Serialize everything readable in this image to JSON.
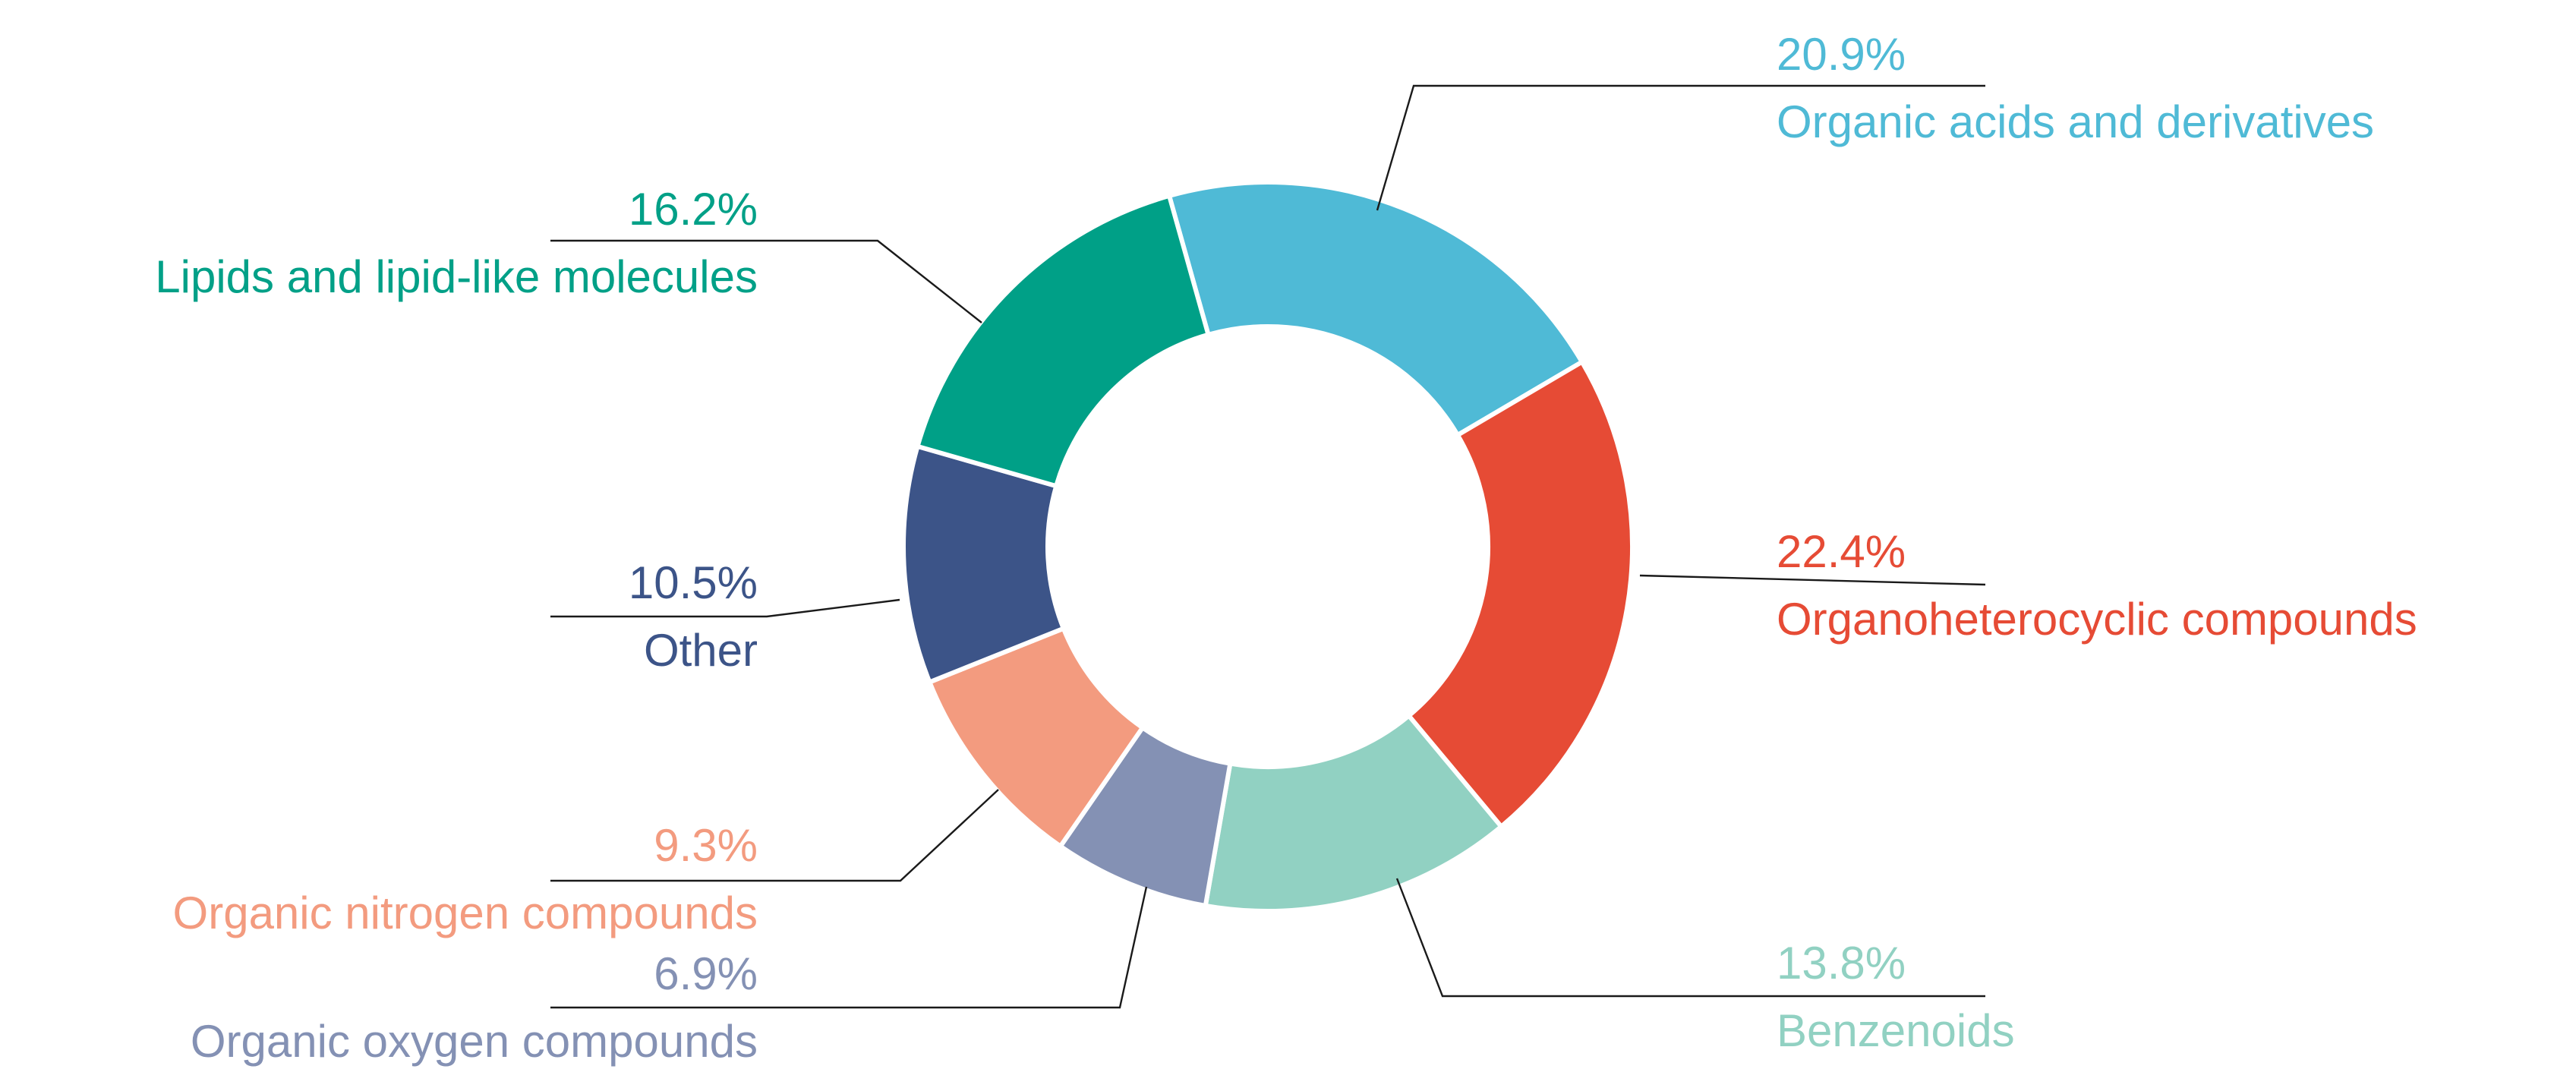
{
  "chart_data": {
    "type": "pie",
    "donut": true,
    "start_angle_deg": -15.7,
    "direction": "clockwise",
    "legend": "none",
    "series": [
      {
        "name": "Organic acids and derivatives",
        "value": 20.9,
        "label": "20.9%",
        "color": "#4FBAD6"
      },
      {
        "name": "Organoheterocyclic compounds",
        "value": 22.4,
        "label": "22.4%",
        "color": "#E64B35"
      },
      {
        "name": "Benzenoids",
        "value": 13.8,
        "label": "13.8%",
        "color": "#91D1C2"
      },
      {
        "name": "Organic oxygen compounds",
        "value": 6.9,
        "label": "6.9%",
        "color": "#8491B4"
      },
      {
        "name": "Organic nitrogen compounds",
        "value": 9.3,
        "label": "9.3%",
        "color": "#F39B7F"
      },
      {
        "name": "Other",
        "value": 10.5,
        "label": "10.5%",
        "color": "#3C5488"
      },
      {
        "name": "Lipids and lipid-like molecules",
        "value": 16.2,
        "label": "16.2%",
        "color": "#00A087"
      }
    ]
  }
}
